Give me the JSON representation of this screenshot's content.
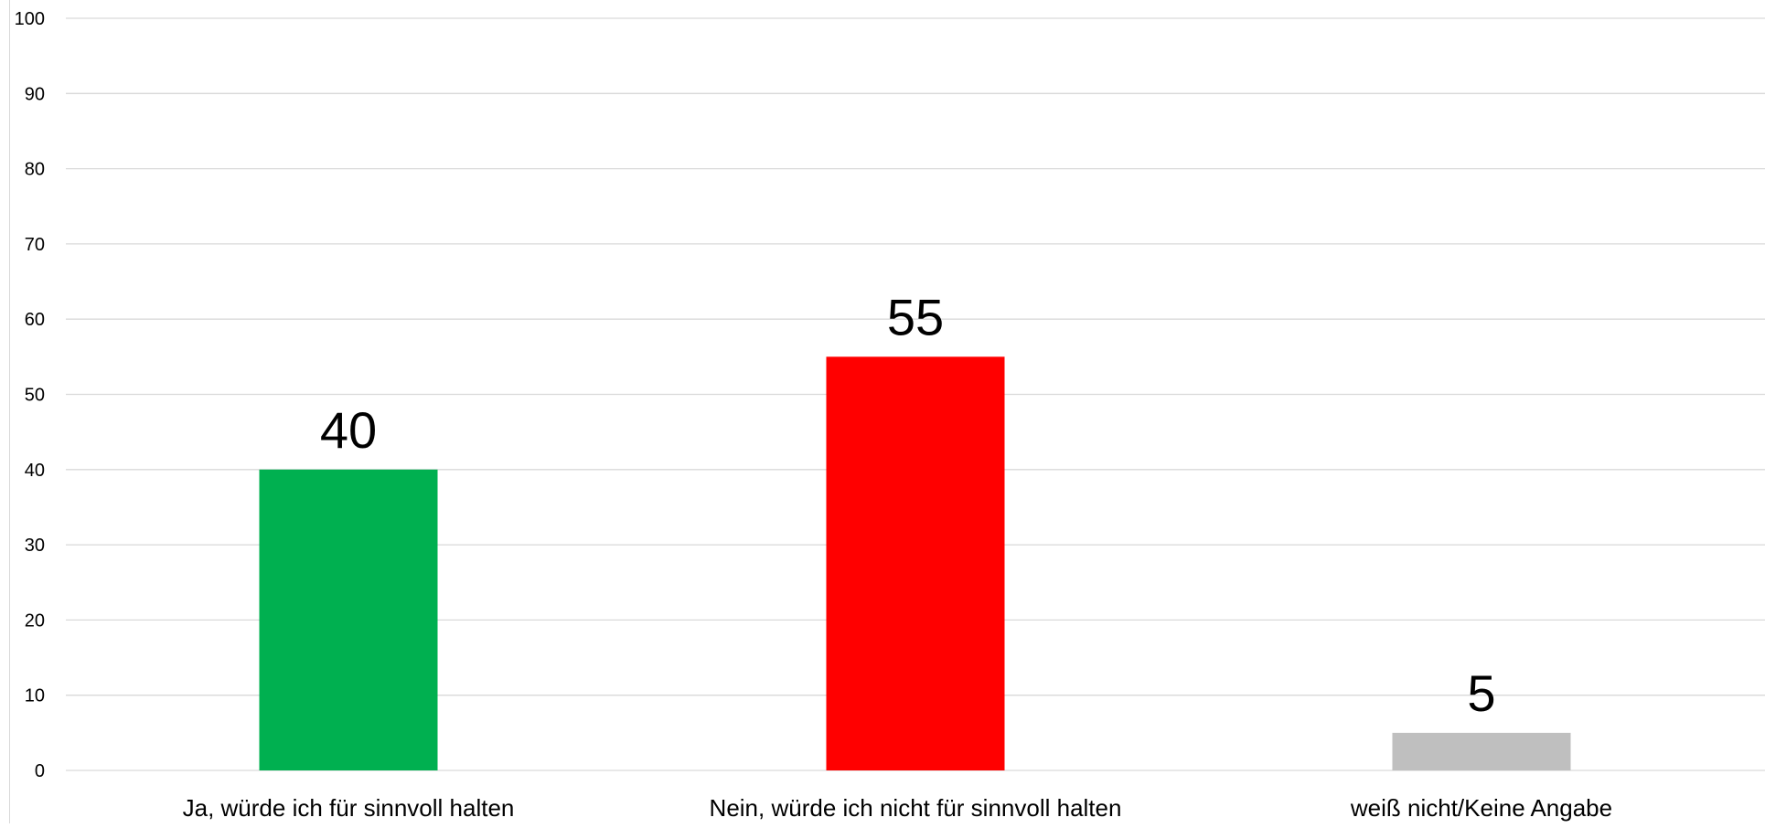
{
  "chart_data": {
    "type": "bar",
    "title": "",
    "xlabel": "",
    "ylabel": "",
    "categories": [
      "Ja, würde ich für sinnvoll halten",
      "Nein, würde ich nicht für sinnvoll halten",
      "weiß nicht/Keine Angabe"
    ],
    "values": [
      40,
      55,
      5
    ],
    "data_labels": [
      "40",
      "55",
      "5"
    ],
    "bar_colors": [
      "#00b050",
      "#ff0000",
      "#bfbfbf"
    ],
    "ylim": [
      0,
      100
    ],
    "yticks": [
      0,
      10,
      20,
      30,
      40,
      50,
      60,
      70,
      80,
      90,
      100
    ],
    "grid": true,
    "legend": "none",
    "colors": {
      "grid": "#d9d9d9",
      "axis_text": "#000000"
    }
  }
}
